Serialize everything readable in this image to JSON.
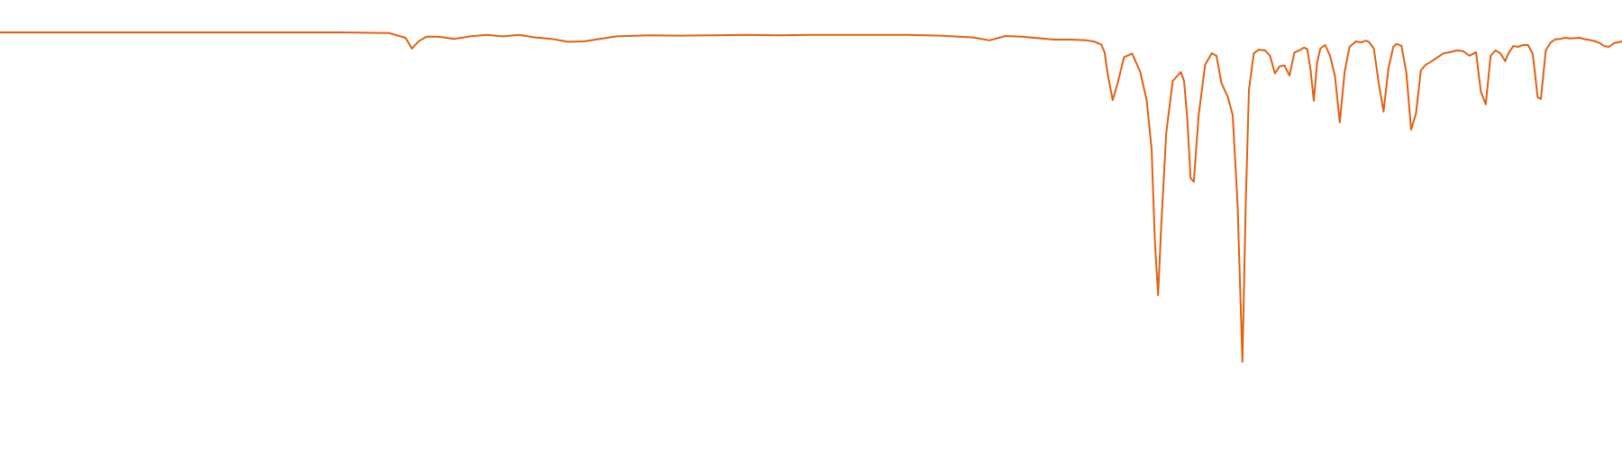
{
  "chart_data": {
    "type": "line",
    "title": "",
    "xlabel": "",
    "ylabel": "",
    "grid": false,
    "legend": "none",
    "xlim": [
      0,
      100
    ],
    "ylim": [
      0,
      100
    ],
    "series": [
      {
        "color": "#e06010",
        "x": [
          0.0,
          3.0,
          6.0,
          9.0,
          12.0,
          15.0,
          18.0,
          21.0,
          24.0,
          25.0,
          25.4,
          25.8,
          26.3,
          27.0,
          28.0,
          29.0,
          30.0,
          31.0,
          32.0,
          33.0,
          34.0,
          35.0,
          36.0,
          38.0,
          40.0,
          42.0,
          44.0,
          46.0,
          48.0,
          50.0,
          52.0,
          54.0,
          56.0,
          58.0,
          60.0,
          61.0,
          62.0,
          63.0,
          64.0,
          65.0,
          66.0,
          67.0,
          67.5,
          67.9,
          68.1,
          68.3,
          68.6,
          68.9,
          69.3,
          69.8,
          70.3,
          70.7,
          71.0,
          71.2,
          71.4,
          71.6,
          71.9,
          72.3,
          72.8,
          73.0,
          73.2,
          73.4,
          73.6,
          73.9,
          74.3,
          74.7,
          75.0,
          75.3,
          75.7,
          76.0,
          76.3,
          76.6,
          76.8,
          77.0,
          77.3,
          77.6,
          78.0,
          78.3,
          78.6,
          78.9,
          79.2,
          79.5,
          79.8,
          80.1,
          80.4,
          80.6,
          80.8,
          81.0,
          81.2,
          81.4,
          81.7,
          82.0,
          82.3,
          82.6,
          82.9,
          83.2,
          83.6,
          83.9,
          84.2,
          84.4,
          84.7,
          85.0,
          85.3,
          85.6,
          85.9,
          86.1,
          86.4,
          86.7,
          87.0,
          87.3,
          87.6,
          87.9,
          88.2,
          88.6,
          89.0,
          89.4,
          89.8,
          90.2,
          90.6,
          91.0,
          91.3,
          91.6,
          91.9,
          92.2,
          92.5,
          92.8,
          93.0,
          93.3,
          93.6,
          93.9,
          94.2,
          94.5,
          94.8,
          95.0,
          95.3,
          95.6,
          95.9,
          96.2,
          96.5,
          96.8,
          97.1,
          97.4,
          97.7,
          98.0,
          98.3,
          98.6,
          98.9,
          99.2,
          99.5,
          100.0
        ],
        "y": [
          96.0,
          96.0,
          96.0,
          96.0,
          96.0,
          96.0,
          96.0,
          96.0,
          95.8,
          94.5,
          91.5,
          93.5,
          94.8,
          94.8,
          94.2,
          94.9,
          95.3,
          94.9,
          95.3,
          94.6,
          94.2,
          93.4,
          93.5,
          94.9,
          95.2,
          95.1,
          95.2,
          95.3,
          95.2,
          95.3,
          95.3,
          95.3,
          95.3,
          95.1,
          94.6,
          93.8,
          95.0,
          94.8,
          94.4,
          94.0,
          94.0,
          93.8,
          93.4,
          92.6,
          90.5,
          84.2,
          77.2,
          81.8,
          89.1,
          90.1,
          85.0,
          77.0,
          63.5,
          38.0,
          23.0,
          43.0,
          68.0,
          82.5,
          85.0,
          82.5,
          72.0,
          55.5,
          54.5,
          73.0,
          87.0,
          90.2,
          89.5,
          82.0,
          78.0,
          73.0,
          48.0,
          4.5,
          48.0,
          80.0,
          90.2,
          91.2,
          91.0,
          89.5,
          84.6,
          86.6,
          86.8,
          84.0,
          90.4,
          91.0,
          91.8,
          91.3,
          85.5,
          77.0,
          87.5,
          91.5,
          92.5,
          89.5,
          84.0,
          71.0,
          85.0,
          92.0,
          93.5,
          93.2,
          93.7,
          93.4,
          91.5,
          82.0,
          74.0,
          86.0,
          92.0,
          92.8,
          92.3,
          85.0,
          69.0,
          73.5,
          85.5,
          87.0,
          87.8,
          89.0,
          90.2,
          90.5,
          91.0,
          90.8,
          89.5,
          90.5,
          79.5,
          76.0,
          89.5,
          91.0,
          90.2,
          88.0,
          90.2,
          92.2,
          92.0,
          92.5,
          92.5,
          90.0,
          78.0,
          77.5,
          91.0,
          93.2,
          94.1,
          94.2,
          94.5,
          94.3,
          94.4,
          94.5,
          94.1,
          93.9,
          93.6,
          93.1,
          92.2,
          92.0,
          93.0,
          93.5
        ]
      }
    ]
  }
}
